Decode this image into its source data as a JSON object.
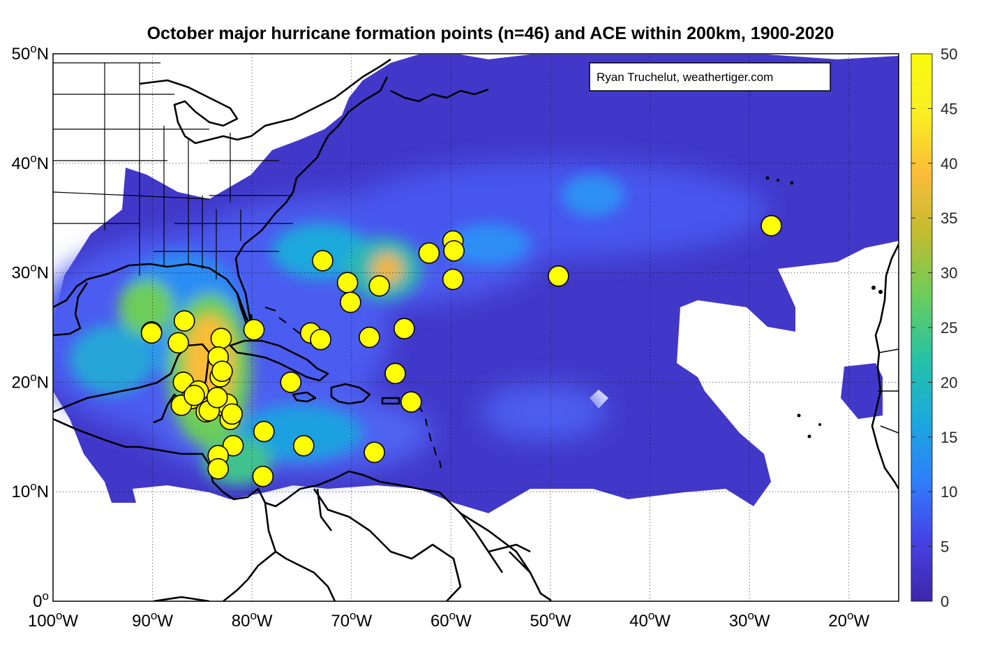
{
  "title": "October major hurricane formation points (n=46) and ACE within 200km, 1900-2020",
  "credit": "Ryan Truchelut, weathertiger.com",
  "map": {
    "lon_range": [
      -100,
      -15
    ],
    "lat_range": [
      0,
      50
    ],
    "lon_ticks": [
      {
        "deg": "100",
        "hemi": "W",
        "value": -100
      },
      {
        "deg": "90",
        "hemi": "W",
        "value": -90
      },
      {
        "deg": "80",
        "hemi": "W",
        "value": -80
      },
      {
        "deg": "70",
        "hemi": "W",
        "value": -70
      },
      {
        "deg": "60",
        "hemi": "W",
        "value": -60
      },
      {
        "deg": "50",
        "hemi": "W",
        "value": -50
      },
      {
        "deg": "40",
        "hemi": "W",
        "value": -40
      },
      {
        "deg": "30",
        "hemi": "W",
        "value": -30
      },
      {
        "deg": "20",
        "hemi": "W",
        "value": -20
      }
    ],
    "lat_ticks": [
      {
        "deg": "50",
        "hemi": "N",
        "value": 50
      },
      {
        "deg": "40",
        "hemi": "N",
        "value": 40
      },
      {
        "deg": "30",
        "hemi": "N",
        "value": 30
      },
      {
        "deg": "20",
        "hemi": "N",
        "value": 20
      },
      {
        "deg": "10",
        "hemi": "N",
        "value": 10
      },
      {
        "deg": "0",
        "hemi": "",
        "value": 0
      }
    ],
    "degree_symbol": "o",
    "gridlines": "dotted",
    "marker_color": "#ffff00",
    "land_outline_color": "#000000"
  },
  "colorbar": {
    "min": 0,
    "max": 50,
    "ticks": [
      "0",
      "5",
      "10",
      "15",
      "20",
      "25",
      "30",
      "35",
      "40",
      "45",
      "50"
    ],
    "colormap": "parula",
    "colors": [
      "#3e26a8",
      "#4741e5",
      "#2f7efb",
      "#1ba9dc",
      "#24c2a8",
      "#6ccd5a",
      "#c0bc2f",
      "#fbbc39",
      "#f9ee22",
      "#f9fb0e"
    ]
  },
  "ace_field": {
    "description_units": "ACE within 200km",
    "hotspots": [
      {
        "lon": -83,
        "lat": 22,
        "value": 45
      },
      {
        "lon": -84,
        "lat": 19,
        "value": 42
      },
      {
        "lon": -67,
        "lat": 30,
        "value": 38
      },
      {
        "lon": -92,
        "lat": 22,
        "value": 22
      },
      {
        "lon": -74,
        "lat": 31,
        "value": 25
      },
      {
        "lon": -76,
        "lat": 15,
        "value": 22
      },
      {
        "lon": -81,
        "lat": 12,
        "value": 22
      },
      {
        "lon": -56,
        "lat": 31,
        "value": 20
      },
      {
        "lon": -45,
        "lat": 37,
        "value": 17
      },
      {
        "lon": -90,
        "lat": 25,
        "value": 20
      }
    ]
  },
  "chart_data": {
    "type": "scatter",
    "title": "October major hurricane formation points (n=46) and ACE within 200km, 1900-2020",
    "xlabel": "",
    "ylabel": "",
    "xlim": [
      -100,
      -15
    ],
    "ylim": [
      0,
      50
    ],
    "x_unit": "degrees longitude (negative = W)",
    "y_unit": "degrees latitude N",
    "points": [
      {
        "lon": -90.1,
        "lat": 24.6
      },
      {
        "lon": -86.8,
        "lat": 25.6
      },
      {
        "lon": -87.4,
        "lat": 23.6
      },
      {
        "lon": -83.1,
        "lat": 24.0
      },
      {
        "lon": -83.4,
        "lat": 22.3
      },
      {
        "lon": -83.2,
        "lat": 20.5
      },
      {
        "lon": -86.9,
        "lat": 20.0
      },
      {
        "lon": -85.4,
        "lat": 19.2
      },
      {
        "lon": -86.1,
        "lat": 18.5
      },
      {
        "lon": -87.1,
        "lat": 17.9
      },
      {
        "lon": -84.6,
        "lat": 17.3
      },
      {
        "lon": -83.2,
        "lat": 18.2
      },
      {
        "lon": -82.5,
        "lat": 17.6
      },
      {
        "lon": -82.2,
        "lat": 16.6
      },
      {
        "lon": -81.9,
        "lat": 14.2
      },
      {
        "lon": -83.4,
        "lat": 13.3
      },
      {
        "lon": -83.4,
        "lat": 12.1
      },
      {
        "lon": -78.8,
        "lat": 15.5
      },
      {
        "lon": -78.9,
        "lat": 11.4
      },
      {
        "lon": -79.8,
        "lat": 24.8
      },
      {
        "lon": -76.1,
        "lat": 20.0
      },
      {
        "lon": -74.1,
        "lat": 24.5
      },
      {
        "lon": -73.1,
        "lat": 23.9
      },
      {
        "lon": -72.9,
        "lat": 31.1
      },
      {
        "lon": -70.4,
        "lat": 29.1
      },
      {
        "lon": -70.1,
        "lat": 27.3
      },
      {
        "lon": -67.2,
        "lat": 28.8
      },
      {
        "lon": -68.2,
        "lat": 24.1
      },
      {
        "lon": -64.7,
        "lat": 24.9
      },
      {
        "lon": -65.6,
        "lat": 20.8
      },
      {
        "lon": -64.0,
        "lat": 18.2
      },
      {
        "lon": -67.7,
        "lat": 13.6
      },
      {
        "lon": -74.8,
        "lat": 14.2
      },
      {
        "lon": -62.2,
        "lat": 31.8
      },
      {
        "lon": -59.8,
        "lat": 32.9
      },
      {
        "lon": -59.7,
        "lat": 32.0
      },
      {
        "lon": -59.8,
        "lat": 29.4
      },
      {
        "lon": -49.2,
        "lat": 29.7
      },
      {
        "lon": -27.8,
        "lat": 34.3
      },
      {
        "lon": -82.5,
        "lat": 18.0
      },
      {
        "lon": -84.3,
        "lat": 17.4
      },
      {
        "lon": -83.0,
        "lat": 21.0
      },
      {
        "lon": -83.5,
        "lat": 18.6
      },
      {
        "lon": -82.0,
        "lat": 17.1
      },
      {
        "lon": -90.1,
        "lat": 24.5
      },
      {
        "lon": -85.8,
        "lat": 18.8
      }
    ]
  }
}
